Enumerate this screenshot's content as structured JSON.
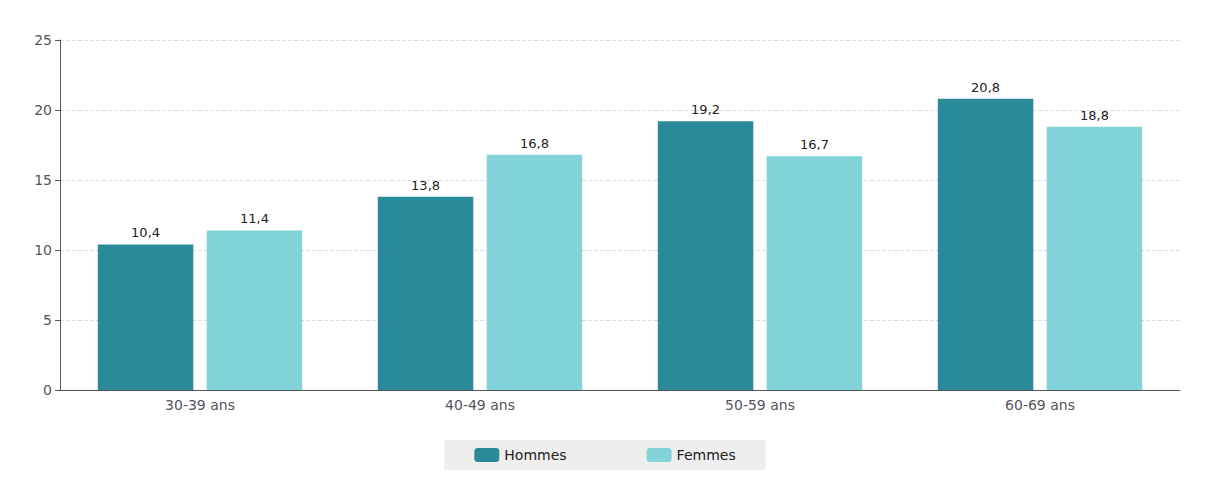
{
  "chart_data": {
    "type": "bar",
    "categories": [
      "30-39 ans",
      "40-49 ans",
      "50-59 ans",
      "60-69 ans"
    ],
    "series": [
      {
        "name": "Hommes",
        "color": "#2b8a9a",
        "values": [
          10.4,
          13.8,
          19.2,
          20.8
        ],
        "value_labels": [
          "10,4",
          "13,8",
          "19,2",
          "20,8"
        ]
      },
      {
        "name": "Femmes",
        "color": "#82d4d8",
        "values": [
          11.4,
          16.8,
          16.7,
          18.8
        ],
        "value_labels": [
          "11,4",
          "16,8",
          "16,7",
          "18,8"
        ]
      }
    ],
    "ylim": [
      0,
      25
    ],
    "yticks": [
      0,
      5,
      10,
      15,
      20,
      25
    ],
    "grid": true,
    "legend": "bottom",
    "data_labels": true
  }
}
